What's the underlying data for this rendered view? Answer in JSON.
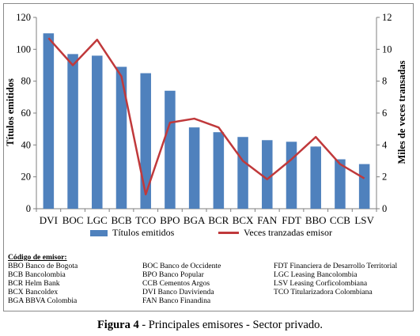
{
  "chart_data": {
    "type": "bar",
    "categories": [
      "DVI",
      "BOC",
      "LGC",
      "BCB",
      "TCO",
      "BPO",
      "BGA",
      "BCR",
      "BCX",
      "FAN",
      "FDT",
      "BBO",
      "CCB",
      "LSV"
    ],
    "series": [
      {
        "name": "Títulos emitidos",
        "type": "bar",
        "axis": "left",
        "color": "#4f81bd",
        "values": [
          110,
          97,
          96,
          89,
          85,
          74,
          51,
          48,
          45,
          43,
          42,
          39,
          31,
          28
        ]
      },
      {
        "name": "Veces tranzadas emisor",
        "type": "line",
        "axis": "right",
        "color": "#c0393b",
        "values": [
          10.7,
          9.0,
          10.6,
          8.3,
          0.9,
          5.4,
          5.65,
          5.1,
          3.0,
          1.85,
          3.1,
          4.5,
          2.8,
          1.9
        ]
      }
    ],
    "ylabel": "Títulos emitidos",
    "y2label": "Miles de veces transadas",
    "ylim": [
      0,
      120
    ],
    "y2lim": [
      0,
      12
    ],
    "yticks": [
      0,
      20,
      40,
      60,
      80,
      100,
      120
    ],
    "y2ticks": [
      0,
      2,
      4,
      6,
      8,
      10,
      12
    ],
    "grid": false,
    "legend_position": "bottom"
  },
  "legend": {
    "bar_label": "Títulos emitidos",
    "line_label": "Veces tranzadas emisor"
  },
  "codes": {
    "heading": "Código de emisor:",
    "col1": [
      "BBO Banco de Bogota",
      "BCB Bancolombia",
      "BCR Helm Bank",
      "BCX Bancoldex",
      "BGA BBVA Colombia"
    ],
    "col2": [
      "BOC Banco de Occidente",
      "BPO Banco Popular",
      "CCB Cementos Argos",
      "DVI Banco Davivienda",
      "FAN Banco Finandina"
    ],
    "col3": [
      "FDT Financiera de Desarrollo Territorial",
      "LGC Leasing Bancolombia",
      "LSV Leasing Corficolombiana",
      "TCO Titularizadora Colombiana"
    ]
  },
  "caption": {
    "figure": "Figura 4",
    "text": " - Principales emisores - Sector privado."
  }
}
